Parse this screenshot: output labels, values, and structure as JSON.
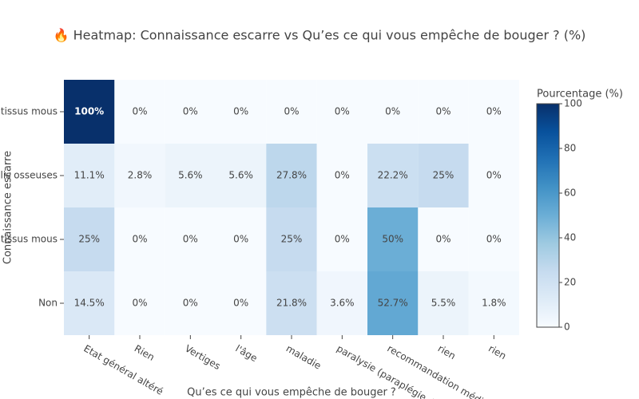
{
  "chart_data": {
    "type": "heatmap",
    "title": "🔥 Heatmap: Connaissance escarre vs Qu’es ce qui vous empêche de bouger ? (%)",
    "x_label": "Qu’es ce qui vous empêche de bouger ?",
    "y_label": "Connaissance escarre",
    "x": [
      "Etat général altéré",
      "Rien",
      "Vertiges",
      "l'âge",
      "maladie",
      "paralysie (paraplégie, tét",
      "recommandation médica",
      "rien",
      "rien"
    ],
    "y": [
      "s tissus mous",
      "lis osseuses",
      "tissus mous",
      "Non"
    ],
    "z": [
      [
        100,
        0,
        0,
        0,
        0,
        0,
        0,
        0,
        0
      ],
      [
        11.1,
        2.8,
        5.6,
        5.6,
        27.8,
        0,
        22.2,
        25,
        0
      ],
      [
        25,
        0,
        0,
        0,
        25,
        0,
        50,
        0,
        0
      ],
      [
        14.5,
        0,
        0,
        0,
        21.8,
        3.6,
        52.7,
        5.5,
        1.8
      ]
    ],
    "value_labels": [
      [
        "100%",
        "0%",
        "0%",
        "0%",
        "0%",
        "0%",
        "0%",
        "0%",
        "0%"
      ],
      [
        "11.1%",
        "2.8%",
        "5.6%",
        "5.6%",
        "27.8%",
        "0%",
        "22.2%",
        "25%",
        "0%"
      ],
      [
        "25%",
        "0%",
        "0%",
        "0%",
        "25%",
        "0%",
        "50%",
        "0%",
        "0%"
      ],
      [
        "14.5%",
        "0%",
        "0%",
        "0%",
        "21.8%",
        "3.6%",
        "52.7%",
        "5.5%",
        "1.8%"
      ]
    ],
    "colorbar_title": "Pourcentage (%)",
    "zlim": [
      0,
      100
    ],
    "colorbar_ticks": [
      0,
      20,
      40,
      60,
      80,
      100
    ],
    "colorscale": [
      "#f7fbff",
      "#deebf7",
      "#c6dbef",
      "#9ecae1",
      "#6baed6",
      "#4292c6",
      "#2171b5",
      "#08519c",
      "#08306b"
    ]
  }
}
